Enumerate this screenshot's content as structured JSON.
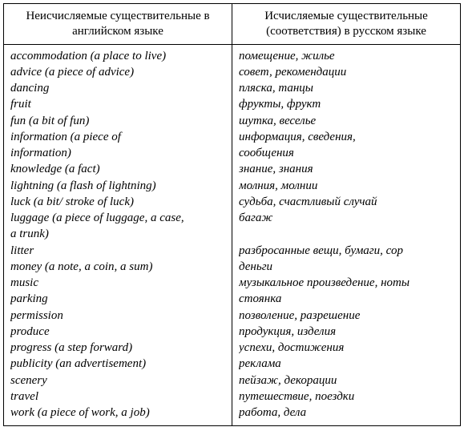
{
  "table": {
    "type": "table",
    "columns": [
      {
        "header": "Неисчисляемые существительные в английском языке",
        "width_pct": 50
      },
      {
        "header": "Исчисляемые существительные (соответствия) в русском языке",
        "width_pct": 50
      }
    ],
    "rows": [
      {
        "left": "accommodation (a place to live)",
        "right": "помещение, жилье"
      },
      {
        "left": "advice (a piece of advice)",
        "right": "совет, рекомендации"
      },
      {
        "left": "dancing",
        "right": "пляска, танцы"
      },
      {
        "left": "fruit",
        "right": "фрукты, фрукт"
      },
      {
        "left": "fun (a bit of fun)",
        "right": "шутка, веселье"
      },
      {
        "left": "information (a piece of",
        "right": "информация, сведения,"
      },
      {
        "left": "information)",
        "right": "сообщения"
      },
      {
        "left": "knowledge (a fact)",
        "right": "знание, знания"
      },
      {
        "left": "lightning (a flash of lightning)",
        "right": "молния, молнии"
      },
      {
        "left": "luck (a bit/ stroke of luck)",
        "right": "судьба, счастливый случай"
      },
      {
        "left": "luggage (a piece of luggage, a case,",
        "right": "багаж"
      },
      {
        "left": "a trunk)",
        "right": ""
      },
      {
        "left": "litter",
        "right": "разбросанные вещи, бумаги, сор"
      },
      {
        "left": "money (a note, a coin, a sum)",
        "right": "деньги"
      },
      {
        "left": "music",
        "right": "музыкальное произведение, ноты"
      },
      {
        "left": "parking",
        "right": "стоянка"
      },
      {
        "left": "permission",
        "right": "позволение, разрешение"
      },
      {
        "left": "produce",
        "right": "продукция, изделия"
      },
      {
        "left": "progress (a step forward)",
        "right": "успехи, достижения"
      },
      {
        "left": "publicity (an advertisement)",
        "right": "реклама"
      },
      {
        "left": "scenery",
        "right": "пейзаж, декорации"
      },
      {
        "left": "travel",
        "right": "путешествие, поездки"
      },
      {
        "left": "work (a piece of work, a job)",
        "right": "работа, дела"
      }
    ],
    "border_color": "#000000",
    "background_color": "#ffffff",
    "header_fontsize": 15,
    "cell_fontsize": 15,
    "cell_font_style": "italic",
    "font_family": "serif"
  }
}
